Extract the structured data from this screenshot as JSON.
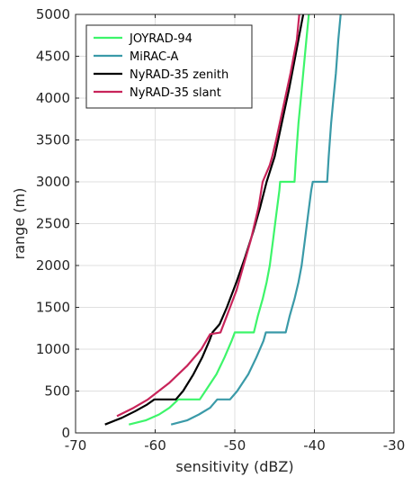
{
  "chart_data": {
    "type": "line",
    "xlabel": "sensitivity (dBZ)",
    "ylabel": "range (m)",
    "xlim": [
      -70,
      -30
    ],
    "ylim": [
      0,
      5000
    ],
    "xticks": [
      -70,
      -60,
      -50,
      -40,
      -30
    ],
    "yticks": [
      0,
      500,
      1000,
      1500,
      2000,
      2500,
      3000,
      3500,
      4000,
      4500,
      5000
    ],
    "grid": true,
    "legend_position": "top-left",
    "series": [
      {
        "name": "JOYRAD-94",
        "color": "#3df56a",
        "points": [
          [
            -63.3,
            100
          ],
          [
            -61.2,
            150
          ],
          [
            -59.5,
            220
          ],
          [
            -58.2,
            300
          ],
          [
            -57.1,
            400
          ],
          [
            -54.4,
            400
          ],
          [
            -53.7,
            500
          ],
          [
            -52.3,
            700
          ],
          [
            -51.3,
            900
          ],
          [
            -50.4,
            1100
          ],
          [
            -50.0,
            1200
          ],
          [
            -47.6,
            1200
          ],
          [
            -47.1,
            1400
          ],
          [
            -46.5,
            1600
          ],
          [
            -46.0,
            1800
          ],
          [
            -45.6,
            2000
          ],
          [
            -45.2,
            2300
          ],
          [
            -44.8,
            2600
          ],
          [
            -44.4,
            2900
          ],
          [
            -44.3,
            3000
          ],
          [
            -42.5,
            3000
          ],
          [
            -42.3,
            3300
          ],
          [
            -42.0,
            3700
          ],
          [
            -41.7,
            4000
          ],
          [
            -41.4,
            4300
          ],
          [
            -41.0,
            4700
          ],
          [
            -40.7,
            5000
          ]
        ]
      },
      {
        "name": "MiRAC-A",
        "color": "#3a9aa8",
        "points": [
          [
            -58.0,
            100
          ],
          [
            -56.0,
            150
          ],
          [
            -54.5,
            220
          ],
          [
            -53.1,
            300
          ],
          [
            -52.2,
            400
          ],
          [
            -50.6,
            400
          ],
          [
            -49.7,
            500
          ],
          [
            -48.3,
            700
          ],
          [
            -47.3,
            900
          ],
          [
            -46.4,
            1100
          ],
          [
            -46.1,
            1200
          ],
          [
            -43.6,
            1200
          ],
          [
            -43.1,
            1400
          ],
          [
            -42.5,
            1600
          ],
          [
            -42.0,
            1800
          ],
          [
            -41.6,
            2000
          ],
          [
            -41.2,
            2300
          ],
          [
            -40.8,
            2600
          ],
          [
            -40.4,
            2900
          ],
          [
            -40.2,
            3000
          ],
          [
            -38.4,
            3000
          ],
          [
            -38.2,
            3300
          ],
          [
            -37.9,
            3700
          ],
          [
            -37.6,
            4000
          ],
          [
            -37.3,
            4300
          ],
          [
            -37.0,
            4700
          ],
          [
            -36.7,
            5000
          ]
        ]
      },
      {
        "name": "NyRAD-35 zenith",
        "color": "#000000",
        "points": [
          [
            -66.3,
            100
          ],
          [
            -64.2,
            180
          ],
          [
            -62.5,
            260
          ],
          [
            -61.0,
            340
          ],
          [
            -60.1,
            400
          ],
          [
            -57.4,
            400
          ],
          [
            -56.5,
            500
          ],
          [
            -55.2,
            700
          ],
          [
            -54.1,
            900
          ],
          [
            -53.2,
            1100
          ],
          [
            -52.8,
            1200
          ],
          [
            -51.9,
            1300
          ],
          [
            -51.0,
            1500
          ],
          [
            -49.8,
            1800
          ],
          [
            -48.7,
            2100
          ],
          [
            -47.7,
            2400
          ],
          [
            -46.8,
            2700
          ],
          [
            -46.0,
            3000
          ],
          [
            -45.0,
            3300
          ],
          [
            -44.1,
            3700
          ],
          [
            -43.2,
            4100
          ],
          [
            -42.4,
            4500
          ],
          [
            -41.6,
            4900
          ],
          [
            -41.4,
            5000
          ]
        ]
      },
      {
        "name": "NyRAD-35 slant",
        "color": "#c8245a",
        "points": [
          [
            -64.8,
            200
          ],
          [
            -62.7,
            300
          ],
          [
            -60.9,
            400
          ],
          [
            -58.2,
            600
          ],
          [
            -56.0,
            800
          ],
          [
            -54.2,
            1000
          ],
          [
            -53.1,
            1180
          ],
          [
            -51.8,
            1200
          ],
          [
            -51.0,
            1400
          ],
          [
            -49.8,
            1700
          ],
          [
            -48.9,
            2000
          ],
          [
            -48.0,
            2300
          ],
          [
            -47.0,
            2700
          ],
          [
            -46.5,
            3000
          ],
          [
            -45.6,
            3200
          ],
          [
            -45.3,
            3300
          ],
          [
            -44.8,
            3500
          ],
          [
            -43.9,
            3900
          ],
          [
            -43.0,
            4300
          ],
          [
            -42.2,
            4700
          ],
          [
            -41.9,
            5000
          ]
        ]
      }
    ]
  }
}
